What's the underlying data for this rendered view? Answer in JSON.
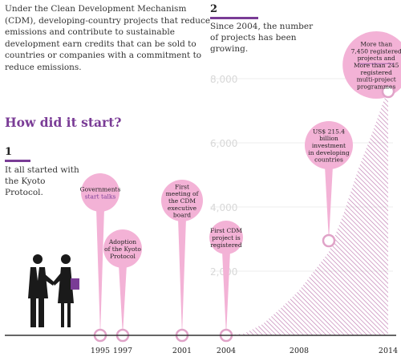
{
  "intro": "Under the Clean Development Mechanism (CDM), developing-country projects that reduce emissions and contribute to sustainable development earn credits that can be sold to countries or companies with a commitment to reduce emissions.",
  "heading": "How did it start?",
  "step1": {
    "number": "1",
    "text": "It all started with the Kyoto Protocol."
  },
  "step2": {
    "number": "2",
    "text": "Since 2004, the number of projects has been growing."
  },
  "colors": {
    "accent": "#7a3c96",
    "bubble": "#f3b2d6",
    "marker": "#e0a3c8",
    "hatch": "#c07ab0",
    "axis": "#333333"
  },
  "chart_data": {
    "type": "area",
    "ylim": [
      0,
      9000
    ],
    "yticks": [
      2000,
      4000,
      6000,
      8000
    ],
    "ytick_labels": [
      "2,000",
      "4,000",
      "6,000",
      "8,000"
    ],
    "xtick_labels": [
      "1995",
      "1997",
      "2001",
      "2004",
      "2008",
      "2014"
    ],
    "series": [
      {
        "x": [
          2004,
          2005,
          2006,
          2007,
          2008,
          2009,
          2010,
          2011,
          2012,
          2013,
          2014
        ],
        "values": [
          0,
          60,
          350,
          850,
          1400,
          2000,
          2600,
          3800,
          5200,
          6400,
          7700
        ]
      }
    ],
    "annotations": [
      {
        "x": 1995,
        "lines": [
          "Governments",
          "start talks"
        ],
        "purple": [
          1
        ],
        "marker": 1995
      },
      {
        "x": 1997,
        "lines": [
          "Adoption",
          "of the Kyoto",
          "Protocol"
        ],
        "purple": [],
        "marker": 1997
      },
      {
        "x": 2001,
        "lines": [
          "First",
          "meeting of",
          "the CDM",
          "executive",
          "board"
        ],
        "purple": [],
        "marker": 2001
      },
      {
        "x": 2004,
        "lines": [
          "First CDM",
          "project is",
          "registered"
        ],
        "purple": [],
        "marker": 2004
      },
      {
        "x": 2010,
        "lines": [
          "US$ 215.4",
          "billion",
          "investment",
          "in developing",
          "countries"
        ],
        "purple": [],
        "marker": 2010
      },
      {
        "x": 2013.2,
        "lines": [
          "More than",
          "7,450 registered",
          "projects and",
          "More than 245",
          "registered",
          "multi-project",
          "programmes"
        ],
        "purple": [],
        "marker": 2014
      }
    ]
  }
}
